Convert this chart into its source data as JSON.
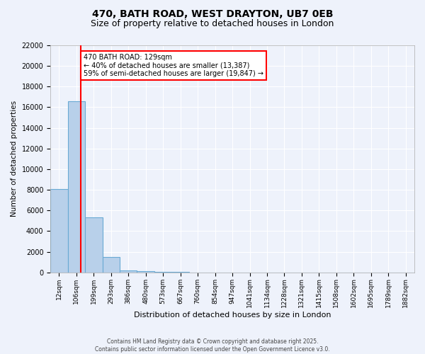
{
  "title_line1": "470, BATH ROAD, WEST DRAYTON, UB7 0EB",
  "title_line2": "Size of property relative to detached houses in London",
  "xlabel": "Distribution of detached houses by size in London",
  "ylabel": "Number of detached properties",
  "bin_labels": [
    "12sqm",
    "106sqm",
    "199sqm",
    "293sqm",
    "386sqm",
    "480sqm",
    "573sqm",
    "667sqm",
    "760sqm",
    "854sqm",
    "947sqm",
    "1041sqm",
    "1134sqm",
    "1228sqm",
    "1321sqm",
    "1415sqm",
    "1508sqm",
    "1602sqm",
    "1695sqm",
    "1789sqm",
    "1882sqm"
  ],
  "bar_heights": [
    8100,
    16600,
    5300,
    1500,
    200,
    90,
    40,
    20,
    10,
    5,
    3,
    2,
    1,
    1,
    1,
    1,
    0,
    0,
    0,
    0,
    0
  ],
  "bar_color": "#b8d0ea",
  "bar_edge_color": "#6aaad4",
  "red_line_x": 1.25,
  "annotation_text": "470 BATH ROAD: 129sqm\n← 40% of detached houses are smaller (13,387)\n59% of semi-detached houses are larger (19,847) →",
  "annotation_box_color": "white",
  "annotation_edge_color": "red",
  "ylim": [
    0,
    22000
  ],
  "yticks": [
    0,
    2000,
    4000,
    6000,
    8000,
    10000,
    12000,
    14000,
    16000,
    18000,
    20000,
    22000
  ],
  "footer_line1": "Contains HM Land Registry data © Crown copyright and database right 2025.",
  "footer_line2": "Contains public sector information licensed under the Open Government Licence v3.0.",
  "background_color": "#eef2fb",
  "grid_color": "white"
}
